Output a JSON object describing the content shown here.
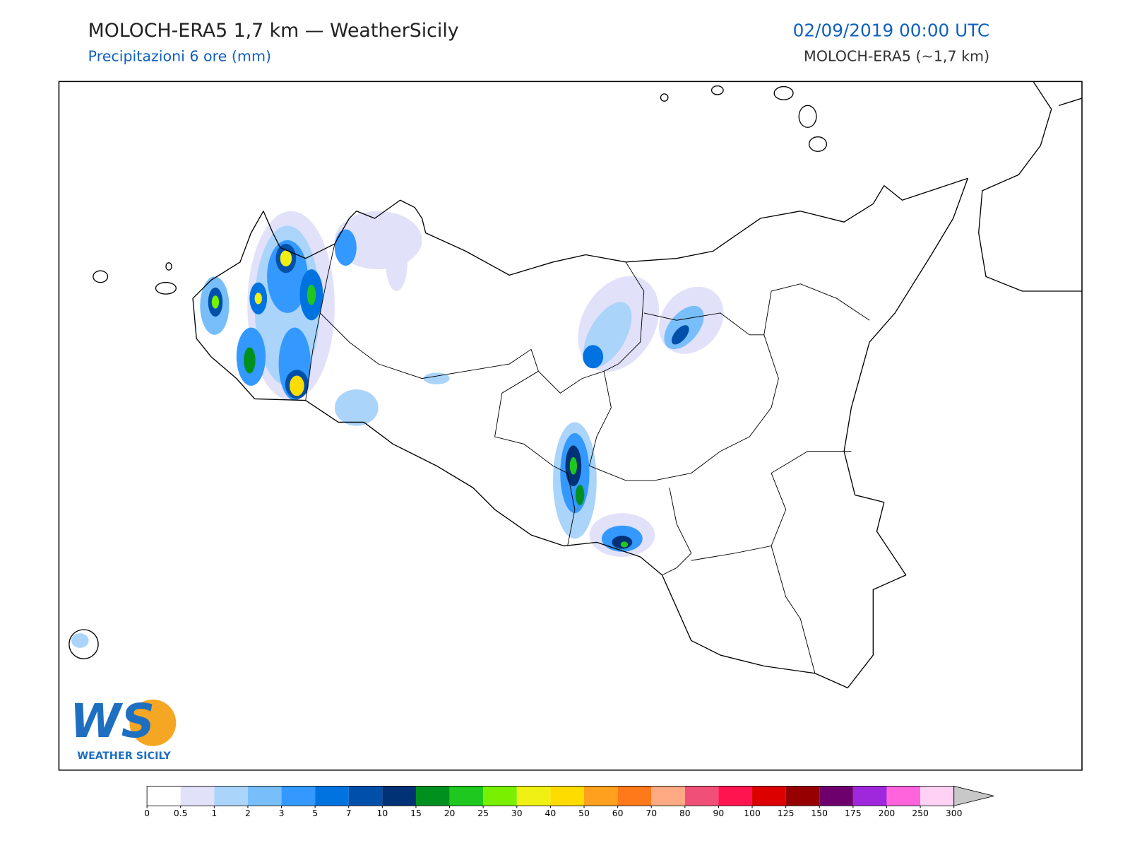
{
  "header": {
    "title": "MOLOCH-ERA5 1,7 km — WeatherSicily",
    "subtitle": "Precipitazioni 6 ore (mm)",
    "datetime": "02/09/2019 00:00 UTC",
    "model": "MOLOCH-ERA5 (~1,7 km)"
  },
  "logo": {
    "mark": "WS",
    "name": "WEATHER SICILY"
  },
  "colorbar": {
    "ticks": [
      0,
      0.5,
      1,
      2,
      3,
      5,
      7,
      10,
      15,
      20,
      25,
      30,
      40,
      50,
      60,
      70,
      80,
      90,
      100,
      125,
      150,
      175,
      200,
      250,
      300
    ],
    "colors": [
      "#ffffff",
      "#e1e1fa",
      "#aad4fa",
      "#78befa",
      "#3399ff",
      "#0073e0",
      "#0050aa",
      "#003275",
      "#00901e",
      "#1ec81e",
      "#78f000",
      "#f0f014",
      "#ffdc00",
      "#ffa01e",
      "#ff7819",
      "#ffaa82",
      "#f05078",
      "#ff1450",
      "#dc0000",
      "#960000",
      "#6e006e",
      "#a028dc",
      "#ff64dc",
      "#ffd2f5"
    ],
    "extend_color": "#c8c8c8"
  }
}
